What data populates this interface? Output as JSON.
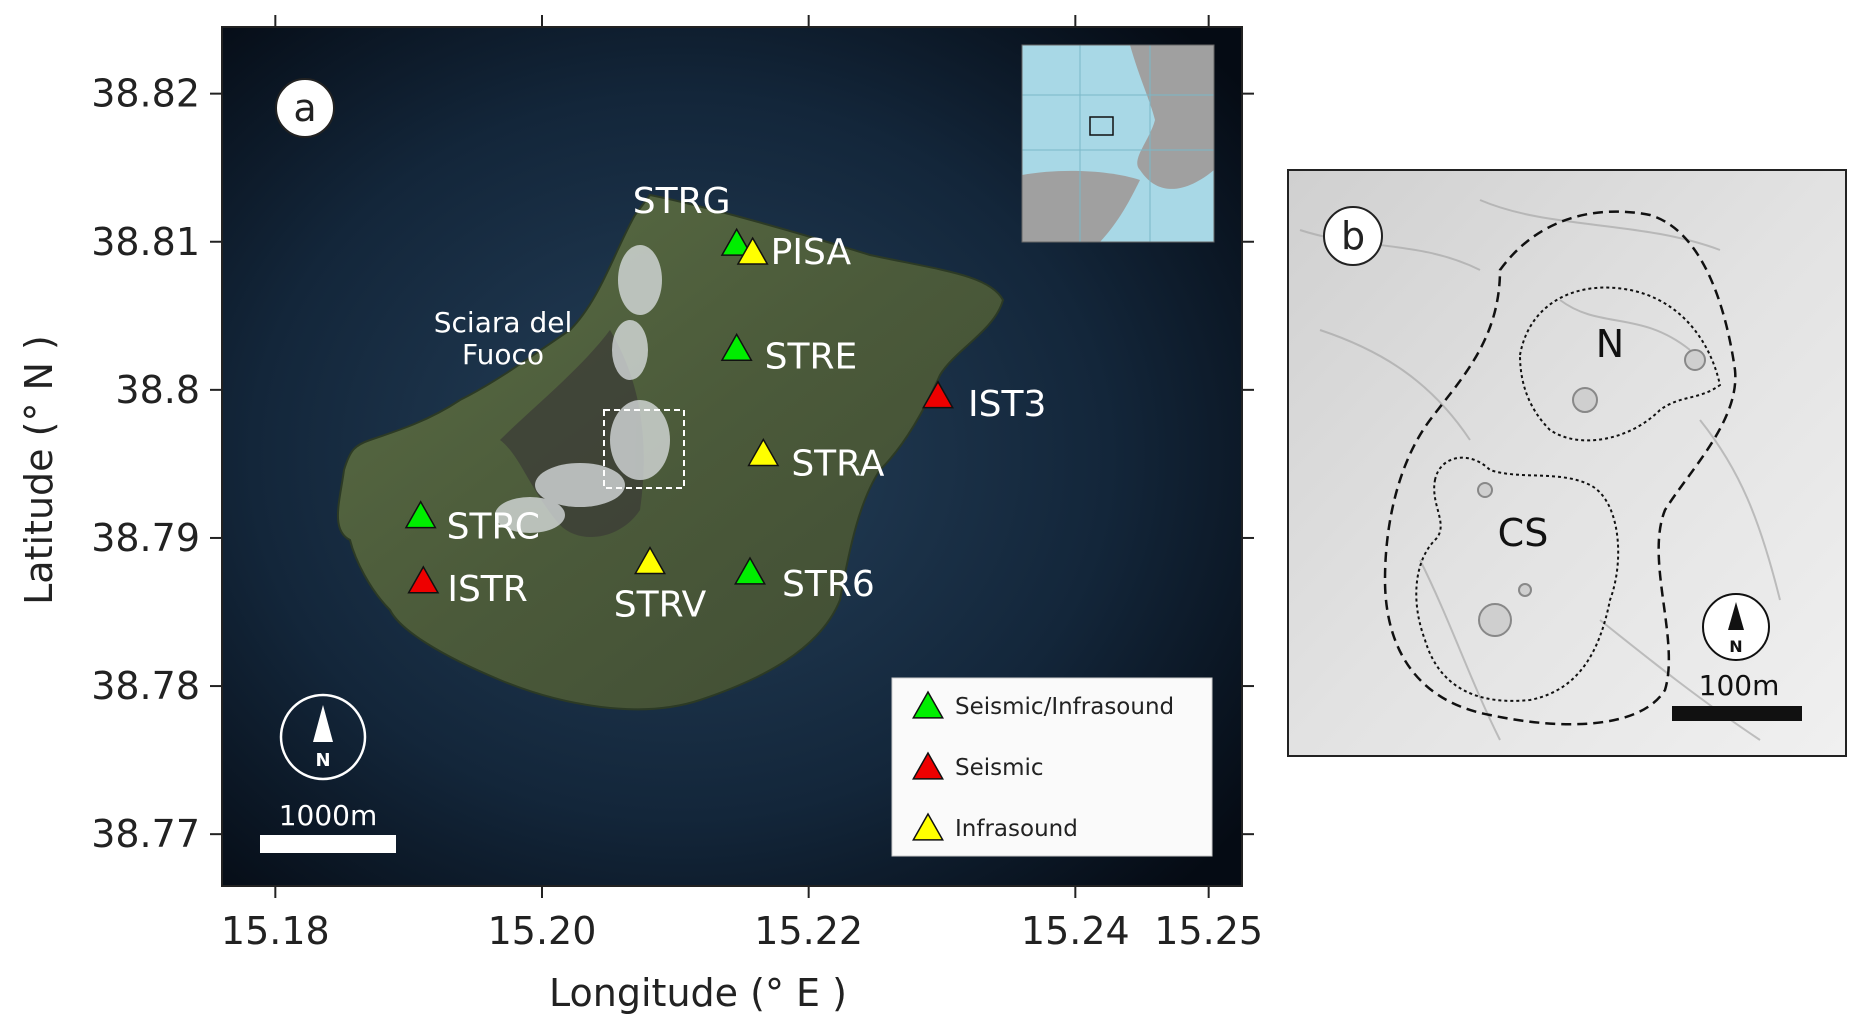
{
  "panel_a": {
    "letter": "a",
    "xlabel": "Longitude (° E )",
    "ylabel": "Latitude (° N )",
    "xlim": [
      15.176,
      15.2525
    ],
    "ylim": [
      38.7665,
      38.8245
    ],
    "xticks": [
      {
        "value": 15.18,
        "label": "15.18"
      },
      {
        "value": 15.2,
        "label": "15.20"
      },
      {
        "value": 15.22,
        "label": "15.22"
      },
      {
        "value": 15.24,
        "label": "15.24"
      },
      {
        "value": 15.25,
        "label": "15.25"
      }
    ],
    "yticks": [
      {
        "value": 38.77,
        "label": "38.77"
      },
      {
        "value": 38.78,
        "label": "38.78"
      },
      {
        "value": 38.79,
        "label": "38.79"
      },
      {
        "value": 38.8,
        "label": "38.8"
      },
      {
        "value": 38.81,
        "label": "38.81"
      },
      {
        "value": 38.82,
        "label": "38.82"
      }
    ],
    "stations": [
      {
        "name": "STRG",
        "lon": 15.2146,
        "lat": 38.8099,
        "type": "seismic_infrasound"
      },
      {
        "name": "PISA",
        "lon": 15.2158,
        "lat": 38.8093,
        "type": "infrasound"
      },
      {
        "name": "STRE",
        "lon": 15.2146,
        "lat": 38.8028,
        "type": "seismic_infrasound"
      },
      {
        "name": "IST3",
        "lon": 15.2297,
        "lat": 38.7996,
        "type": "seismic"
      },
      {
        "name": "STRA",
        "lon": 15.2166,
        "lat": 38.7957,
        "type": "infrasound"
      },
      {
        "name": "STRC",
        "lon": 15.1909,
        "lat": 38.7915,
        "type": "seismic_infrasound"
      },
      {
        "name": "ISTR",
        "lon": 15.1911,
        "lat": 38.7871,
        "type": "seismic"
      },
      {
        "name": "STRV",
        "lon": 15.2081,
        "lat": 38.7884,
        "type": "infrasound"
      },
      {
        "name": "STR6",
        "lon": 15.2156,
        "lat": 38.7877,
        "type": "seismic_infrasound"
      }
    ],
    "place_label": {
      "line1": "Sciara del",
      "line2": "Fuoco"
    },
    "scale_label": "1000m",
    "north_label": "N",
    "legend": [
      {
        "type": "seismic_infrasound",
        "label": "Seismic/Infrasound"
      },
      {
        "type": "seismic",
        "label": "Seismic"
      },
      {
        "type": "infrasound",
        "label": "Infrasound"
      }
    ]
  },
  "panel_b": {
    "letter": "b",
    "region_n": "N",
    "region_cs": "CS",
    "scale_label": "100m",
    "north_label": "N"
  },
  "colors": {
    "seismic_infrasound": "#00ee00",
    "seismic": "#ee0000",
    "infrasound": "#ffff00",
    "sea": "#0d1a2a",
    "land": "#4a5a3a",
    "inset_sea": "#a8d8e6",
    "inset_land": "#a0a0a0"
  }
}
